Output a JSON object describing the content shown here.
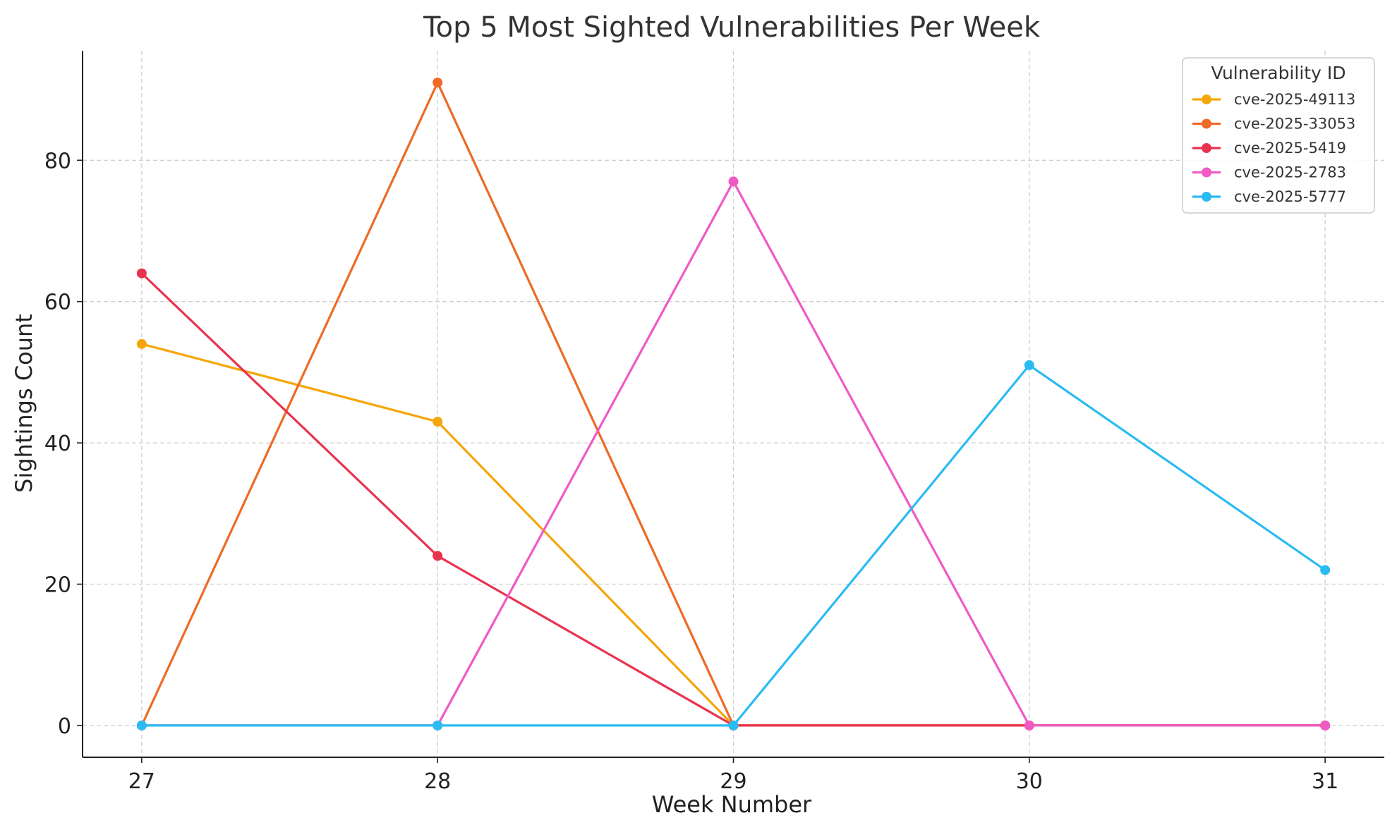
{
  "chart_data": {
    "type": "line",
    "title": "Top 5 Most Sighted Vulnerabilities Per Week",
    "xlabel": "Week Number",
    "ylabel": "Sightings Count",
    "x": [
      27,
      28,
      29,
      30,
      31
    ],
    "xlim": [
      26.8,
      31.2
    ],
    "ylim": [
      -4.5,
      95.5
    ],
    "yticks": [
      0,
      20,
      40,
      60,
      80
    ],
    "grid": true,
    "legend": {
      "title": "Vulnerability ID",
      "placement": "top-right"
    },
    "series": [
      {
        "name": "cve-2025-49113",
        "color": "#f5a60a",
        "values": [
          54,
          43,
          0,
          0,
          0
        ]
      },
      {
        "name": "cve-2025-33053",
        "color": "#ee6a26",
        "values": [
          0,
          91,
          0,
          0,
          0
        ]
      },
      {
        "name": "cve-2025-5419",
        "color": "#e8334f",
        "values": [
          64,
          24,
          0,
          0,
          0
        ]
      },
      {
        "name": "cve-2025-2783",
        "color": "#f05ac4",
        "values": [
          0,
          0,
          77,
          0,
          0
        ]
      },
      {
        "name": "cve-2025-5777",
        "color": "#2bbbf3",
        "values": [
          0,
          0,
          0,
          51,
          22
        ]
      }
    ]
  }
}
